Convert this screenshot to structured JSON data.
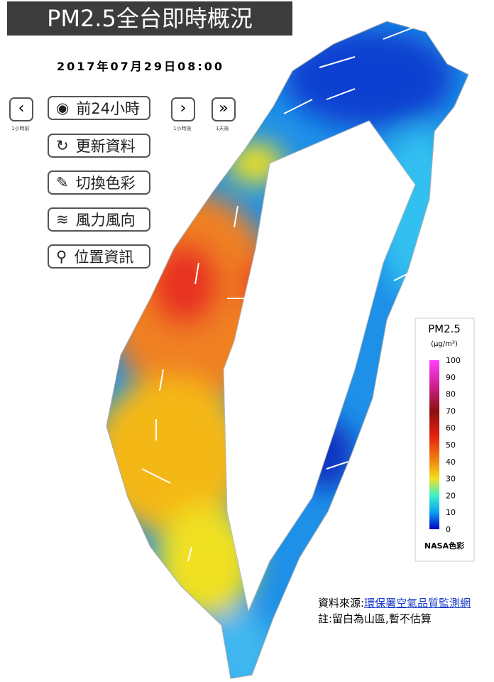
{
  "header": {
    "title": "PM2.5全台即時概況",
    "timestamp": "2017年07月29日08:00"
  },
  "controls": {
    "prev_hour": "1小時前",
    "back_24h": "前24小時",
    "next_hour": "1小時後",
    "next_day": "1天後",
    "buttons": [
      "更新資料",
      "切換色彩",
      "風力風向",
      "位置資訊"
    ]
  },
  "legend": {
    "title": "PM2.5",
    "unit": "(μg/m³)",
    "ticks": [
      100,
      90,
      80,
      70,
      60,
      50,
      40,
      30,
      20,
      10,
      0
    ],
    "footer": "NASA色彩"
  },
  "source": {
    "label": "資料來源:",
    "link": "環保署空氣品質監測網",
    "note": "註:留白為山區,暫不估算"
  }
}
